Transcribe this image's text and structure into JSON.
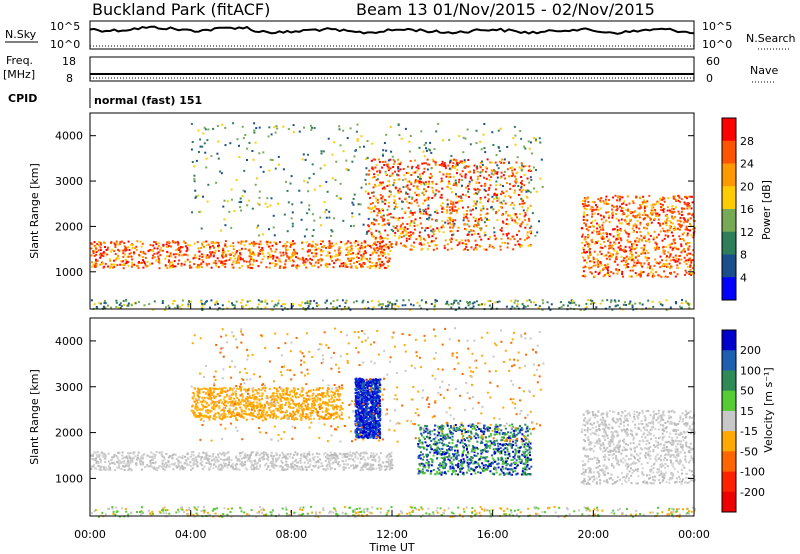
{
  "header": {
    "title": "Buckland Park (fitACF)",
    "subtitle": "Beam 13  01/Nov/2015 - 02/Nov/2015"
  },
  "top_panels": {
    "nsky_label": "N.Sky",
    "nsearch_label": "N.Search",
    "noise_ticks": [
      "10^5",
      "10^0"
    ],
    "freq_label_1": "Freq.",
    "freq_label_2": "[MHz]",
    "freq_ticks": [
      "18",
      "8"
    ],
    "nave_label": "Nave",
    "nave_ticks": [
      "60",
      "0"
    ],
    "cpid_label": "CPID",
    "cpid_value": "normal (fast) 151"
  },
  "chart_data": [
    {
      "type": "heatmap",
      "panel": "power",
      "title": "",
      "xlabel": "",
      "ylabel": "Slant Range [km]",
      "xlim": [
        "00:00",
        "00:00"
      ],
      "ylim": [
        180,
        4500
      ],
      "y_ticks": [
        1000,
        2000,
        3000,
        4000
      ],
      "colorbar": {
        "label": "Power [dB]",
        "ticks": [
          "28",
          "24",
          "20",
          "16",
          "12",
          "8",
          "4"
        ],
        "colors": [
          "#ff0000",
          "#ff5500",
          "#ff9900",
          "#ffcc00",
          "#77aa55",
          "#2e7d5b",
          "#1a4f8c",
          "#0000ff"
        ]
      },
      "features": [
        {
          "name": "main band",
          "time_hours": [
            0,
            12
          ],
          "range_km": [
            1100,
            1700
          ],
          "level": "high"
        },
        {
          "name": "rising echo",
          "time_hours": [
            11,
            17.5
          ],
          "range_km": [
            1500,
            3500
          ],
          "level": "high"
        },
        {
          "name": "evening slant band",
          "time_hours": [
            19.5,
            24
          ],
          "range_km": [
            900,
            2700
          ],
          "level": "high"
        },
        {
          "name": "near-range clutter",
          "time_hours": [
            0,
            24
          ],
          "range_km": [
            180,
            400
          ],
          "level": "low"
        }
      ]
    },
    {
      "type": "heatmap",
      "panel": "velocity",
      "title": "",
      "xlabel": "Time UT",
      "ylabel": "Slant Range [km]",
      "xlim": [
        "00:00",
        "00:00"
      ],
      "ylim": [
        180,
        4500
      ],
      "y_ticks": [
        1000,
        2000,
        3000,
        4000
      ],
      "x_ticks": [
        "00:00",
        "04:00",
        "08:00",
        "12:00",
        "16:00",
        "20:00",
        "00:00"
      ],
      "colorbar": {
        "label": "Velocity [m s⁻¹]",
        "ticks": [
          "200",
          "100",
          "50",
          "15",
          "-15",
          "-50",
          "-100",
          "-200"
        ],
        "colors": [
          "#0000cc",
          "#1f5fb0",
          "#2e8b57",
          "#55cc33",
          "#c8c8c8",
          "#ffaa00",
          "#ff6600",
          "#ff2200",
          "#ee0000"
        ]
      },
      "features": [
        {
          "name": "ground scatter band",
          "time_hours": [
            0,
            12
          ],
          "range_km": [
            1200,
            1600
          ],
          "value": "low velocity (grey)"
        },
        {
          "name": "negative velocity echoes",
          "time_hours": [
            4,
            10
          ],
          "range_km": [
            2300,
            3000
          ],
          "value": "negative (orange)"
        },
        {
          "name": "positive velocity streak",
          "time_hours": [
            10.5,
            11.5
          ],
          "range_km": [
            1900,
            3200
          ],
          "value": "positive (blue)"
        },
        {
          "name": "mixed positive region",
          "time_hours": [
            13,
            17.5
          ],
          "range_km": [
            1100,
            2200
          ],
          "value": "positive (blue/green)"
        },
        {
          "name": "evening low velocity band",
          "time_hours": [
            19.5,
            24
          ],
          "range_km": [
            900,
            2500
          ],
          "value": "low velocity (grey)"
        }
      ]
    }
  ],
  "xaxis_label": "Time UT"
}
